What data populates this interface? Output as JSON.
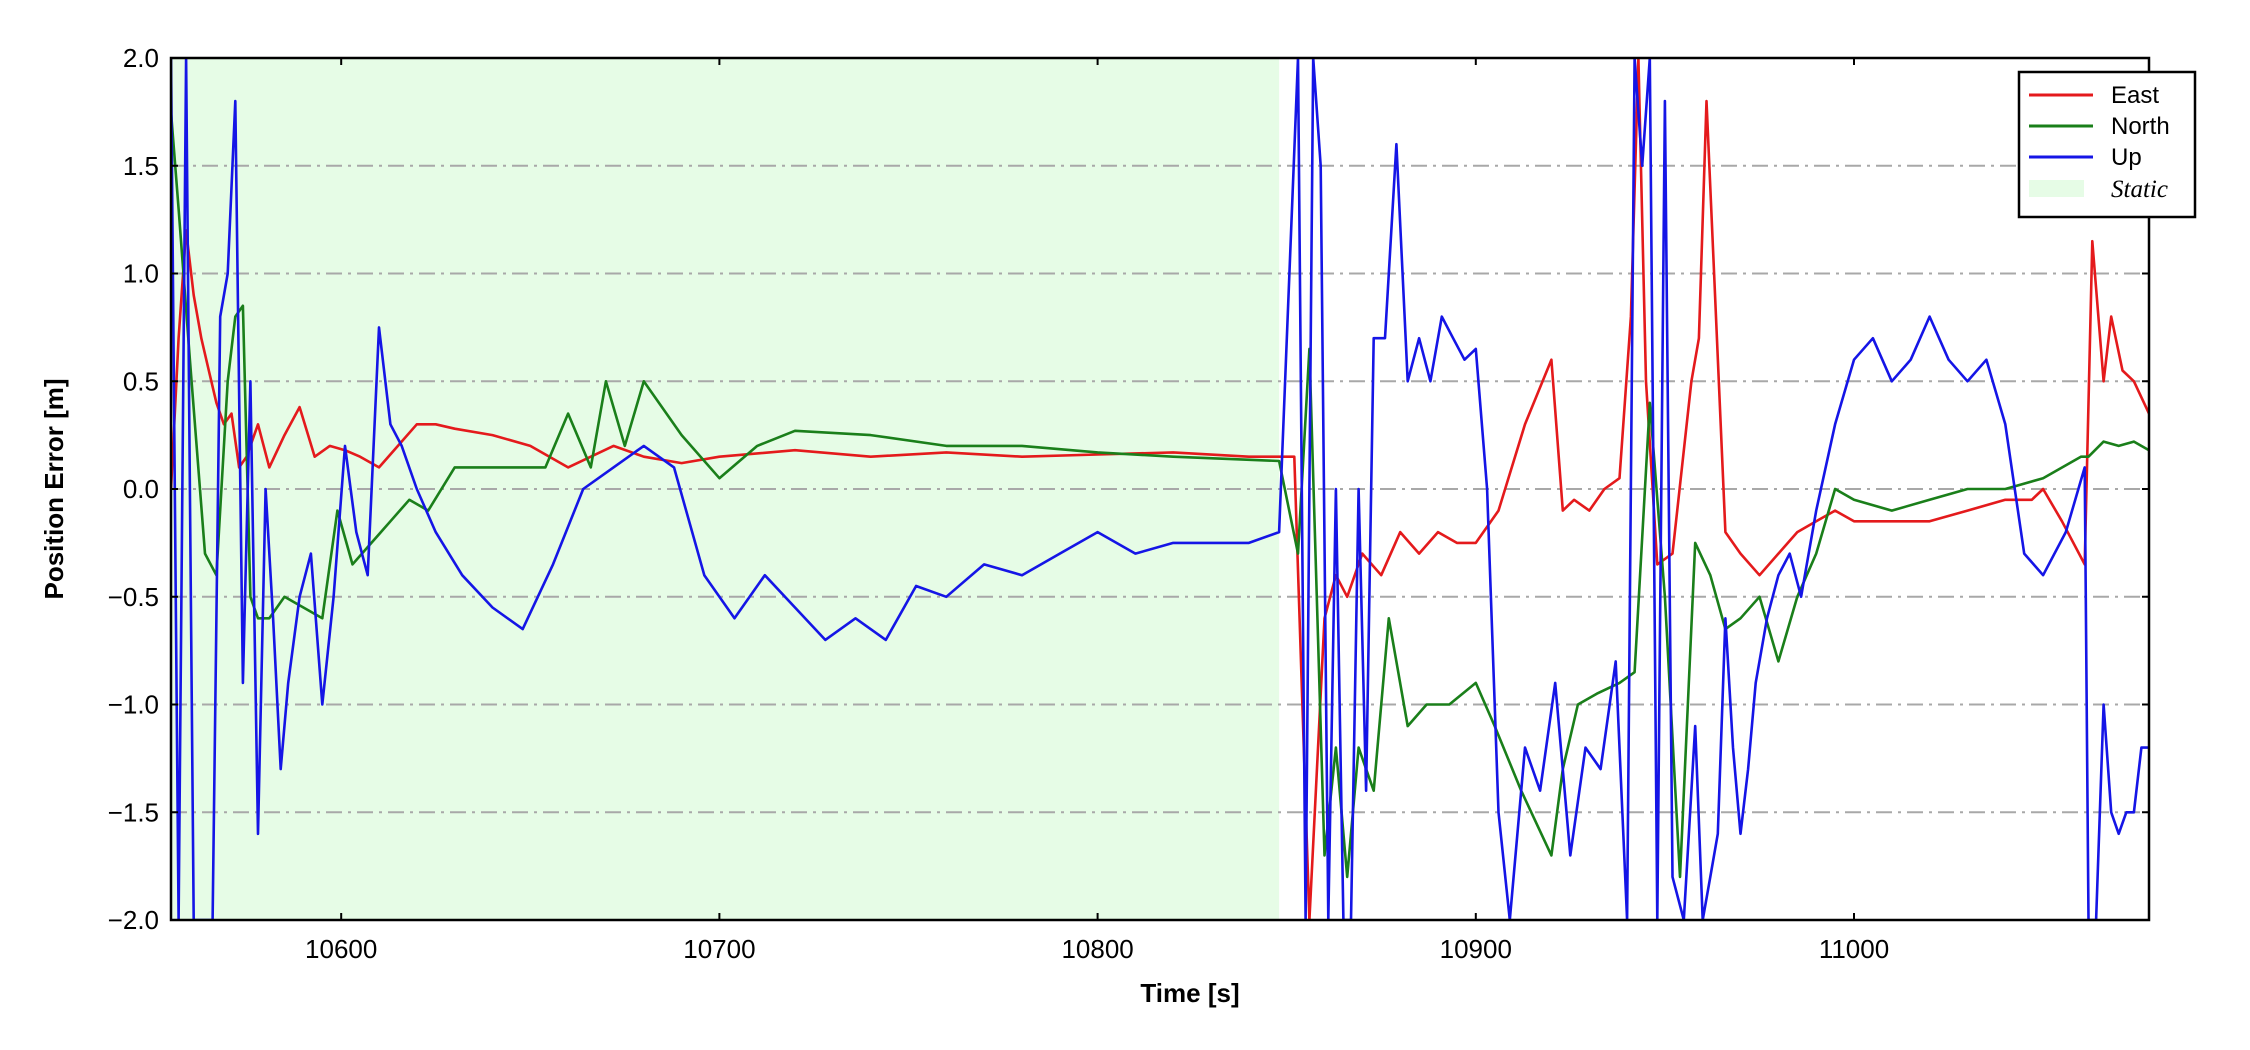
{
  "chart_data": {
    "type": "line",
    "xlabel": "Time [s]",
    "ylabel": "Position Error [m]",
    "xlim": [
      10555,
      11078
    ],
    "ylim": [
      -2.0,
      2.0
    ],
    "xticks": [
      10600,
      10700,
      10800,
      10900,
      11000
    ],
    "xtick_labels": [
      "10600",
      "10700",
      "10800",
      "10900",
      "11000"
    ],
    "yticks": [
      2.0,
      1.5,
      1.0,
      0.5,
      0.0,
      -0.5,
      -1.0,
      -1.5,
      -2.0
    ],
    "ytick_labels": [
      "2.0",
      "1.5",
      "1.0",
      "0.5",
      "0.0",
      "−0.5",
      "−1.0",
      "−1.5",
      "−2.0"
    ],
    "grid": "horizontal dash-dot",
    "legend_position": "top-right",
    "static_region": {
      "label": "Static",
      "x_start": 10555,
      "x_end": 10848,
      "color": "#e6fce6"
    },
    "series": [
      {
        "name": "East",
        "color": "#e41a1c",
        "x": [
          10555,
          10557,
          10559,
          10561,
          10563,
          10565,
          10567,
          10569,
          10571,
          10573,
          10575,
          10578,
          10581,
          10585,
          10589,
          10593,
          10597,
          10601,
          10605,
          10610,
          10615,
          10620,
          10625,
          10630,
          10640,
          10650,
          10660,
          10666,
          10672,
          10680,
          10690,
          10700,
          10720,
          10740,
          10760,
          10780,
          10800,
          10820,
          10840,
          10852,
          10856,
          10860,
          10863,
          10866,
          10870,
          10875,
          10880,
          10885,
          10890,
          10895,
          10900,
          10906,
          10913,
          10920,
          10923,
          10926,
          10930,
          10934,
          10938,
          10941,
          10943,
          10945,
          10948,
          10952,
          10957,
          10959,
          10961,
          10963,
          10966,
          10970,
          10975,
          10980,
          10985,
          10990,
          10995,
          11000,
          11010,
          11020,
          11030,
          11040,
          11047,
          11050,
          11055,
          11061,
          11063,
          11066,
          11068,
          11071,
          11074,
          11078
        ],
        "y": [
          0.0,
          0.7,
          1.2,
          0.9,
          0.7,
          0.55,
          0.4,
          0.3,
          0.35,
          0.1,
          0.15,
          0.3,
          0.1,
          0.25,
          0.38,
          0.15,
          0.2,
          0.18,
          0.15,
          0.1,
          0.2,
          0.3,
          0.3,
          0.28,
          0.25,
          0.2,
          0.1,
          0.15,
          0.2,
          0.15,
          0.12,
          0.15,
          0.18,
          0.15,
          0.17,
          0.15,
          0.16,
          0.17,
          0.15,
          0.15,
          -2.0,
          -0.6,
          -0.4,
          -0.5,
          -0.3,
          -0.4,
          -0.2,
          -0.3,
          -0.2,
          -0.25,
          -0.25,
          -0.1,
          0.3,
          0.6,
          -0.1,
          -0.05,
          -0.1,
          0.0,
          0.05,
          0.8,
          2.0,
          0.5,
          -0.35,
          -0.3,
          0.5,
          0.7,
          1.8,
          1.0,
          -0.2,
          -0.3,
          -0.4,
          -0.3,
          -0.2,
          -0.15,
          -0.1,
          -0.15,
          -0.15,
          -0.15,
          -0.1,
          -0.05,
          -0.05,
          0.0,
          -0.15,
          -0.35,
          1.15,
          0.5,
          0.8,
          0.55,
          0.5,
          0.35
        ]
      },
      {
        "name": "North",
        "color": "#1a7f1a",
        "x": [
          10555,
          10557,
          10560,
          10564,
          10567,
          10570,
          10572,
          10574,
          10576,
          10578,
          10581,
          10585,
          10590,
          10595,
          10599,
          10603,
          10608,
          10613,
          10618,
          10623,
          10630,
          10638,
          10646,
          10654,
          10660,
          10666,
          10670,
          10675,
          10680,
          10690,
          10700,
          10710,
          10720,
          10740,
          10760,
          10780,
          10800,
          10820,
          10848,
          10853,
          10856,
          10860,
          10863,
          10866,
          10869,
          10873,
          10877,
          10882,
          10887,
          10893,
          10900,
          10905,
          10912,
          10920,
          10923,
          10927,
          10932,
          10938,
          10942,
          10946,
          10950,
          10954,
          10958,
          10962,
          10966,
          10970,
          10975,
          10980,
          10985,
          10990,
          10995,
          11000,
          11010,
          11020,
          11030,
          11040,
          11050,
          11060,
          11062,
          11066,
          11070,
          11074,
          11078
        ],
        "y": [
          1.75,
          1.3,
          0.6,
          -0.3,
          -0.4,
          0.5,
          0.8,
          0.85,
          -0.5,
          -0.6,
          -0.6,
          -0.5,
          -0.55,
          -0.6,
          -0.1,
          -0.35,
          -0.25,
          -0.15,
          -0.05,
          -0.1,
          0.1,
          0.1,
          0.1,
          0.1,
          0.35,
          0.1,
          0.5,
          0.2,
          0.5,
          0.25,
          0.05,
          0.2,
          0.27,
          0.25,
          0.2,
          0.2,
          0.17,
          0.15,
          0.13,
          -0.3,
          0.65,
          -1.7,
          -1.2,
          -1.8,
          -1.2,
          -1.4,
          -0.6,
          -1.1,
          -1.0,
          -1.0,
          -0.9,
          -1.1,
          -1.4,
          -1.7,
          -1.3,
          -1.0,
          -0.95,
          -0.9,
          -0.85,
          0.4,
          -0.5,
          -1.8,
          -0.25,
          -0.4,
          -0.65,
          -0.6,
          -0.5,
          -0.8,
          -0.5,
          -0.3,
          0.0,
          -0.05,
          -0.1,
          -0.05,
          0.0,
          0.0,
          0.05,
          0.15,
          0.15,
          0.22,
          0.2,
          0.22,
          0.18
        ]
      },
      {
        "name": "Up",
        "color": "#1515e6",
        "x": [
          10555,
          10557,
          10559,
          10561,
          10563,
          10566,
          10568,
          10570,
          10572,
          10574,
          10576,
          10578,
          10580,
          10582,
          10584,
          10586,
          10589,
          10592,
          10595,
          10598,
          10601,
          10604,
          10607,
          10610,
          10613,
          10616,
          10620,
          10625,
          10632,
          10640,
          10648,
          10656,
          10664,
          10672,
          10680,
          10688,
          10696,
          10704,
          10712,
          10720,
          10728,
          10736,
          10744,
          10752,
          10760,
          10770,
          10780,
          10790,
          10800,
          10810,
          10820,
          10830,
          10840,
          10848,
          10853,
          10855,
          10857,
          10859,
          10861,
          10863,
          10865,
          10867,
          10869,
          10871,
          10873,
          10876,
          10879,
          10882,
          10885,
          10888,
          10891,
          10894,
          10897,
          10900,
          10903,
          10906,
          10909,
          10913,
          10917,
          10921,
          10925,
          10929,
          10933,
          10937,
          10940,
          10942,
          10944,
          10946,
          10948,
          10950,
          10952,
          10955,
          10958,
          10960,
          10962,
          10964,
          10966,
          10968,
          10970,
          10972,
          10974,
          10977,
          10980,
          10983,
          10986,
          10990,
          10995,
          11000,
          11005,
          11010,
          11015,
          11020,
          11025,
          11030,
          11035,
          11040,
          11045,
          11050,
          11056,
          11061,
          11062,
          11064,
          11066,
          11068,
          11070,
          11072,
          11074,
          11076,
          11078
        ],
        "y": [
          2.0,
          -2.0,
          2.0,
          -2.0,
          -2.0,
          -2.0,
          0.8,
          1.0,
          1.8,
          -0.9,
          0.5,
          -1.6,
          0.0,
          -0.6,
          -1.3,
          -0.9,
          -0.5,
          -0.3,
          -1.0,
          -0.5,
          0.2,
          -0.2,
          -0.4,
          0.75,
          0.3,
          0.2,
          0.0,
          -0.2,
          -0.4,
          -0.55,
          -0.65,
          -0.35,
          0.0,
          0.1,
          0.2,
          0.1,
          -0.4,
          -0.6,
          -0.4,
          -0.55,
          -0.7,
          -0.6,
          -0.7,
          -0.45,
          -0.5,
          -0.35,
          -0.4,
          -0.3,
          -0.2,
          -0.3,
          -0.25,
          -0.25,
          -0.25,
          -0.2,
          2.0,
          -2.0,
          2.0,
          1.5,
          -2.0,
          0.0,
          -2.0,
          -2.0,
          0.0,
          -1.4,
          0.7,
          0.7,
          1.6,
          0.5,
          0.7,
          0.5,
          0.8,
          0.7,
          0.6,
          0.65,
          0.0,
          -1.5,
          -2.0,
          -1.2,
          -1.4,
          -0.9,
          -1.7,
          -1.2,
          -1.3,
          -0.8,
          -2.0,
          2.0,
          1.5,
          2.0,
          -2.0,
          1.8,
          -1.8,
          -2.0,
          -1.1,
          -2.0,
          -1.8,
          -1.6,
          -0.6,
          -1.2,
          -1.6,
          -1.3,
          -0.9,
          -0.6,
          -0.4,
          -0.3,
          -0.5,
          -0.1,
          0.3,
          0.6,
          0.7,
          0.5,
          0.6,
          0.8,
          0.6,
          0.5,
          0.6,
          0.3,
          -0.3,
          -0.4,
          -0.2,
          0.1,
          -2.0,
          -2.0,
          -1.0,
          -1.5,
          -1.6,
          -1.5,
          -1.5,
          -1.2,
          -1.2
        ]
      }
    ]
  }
}
